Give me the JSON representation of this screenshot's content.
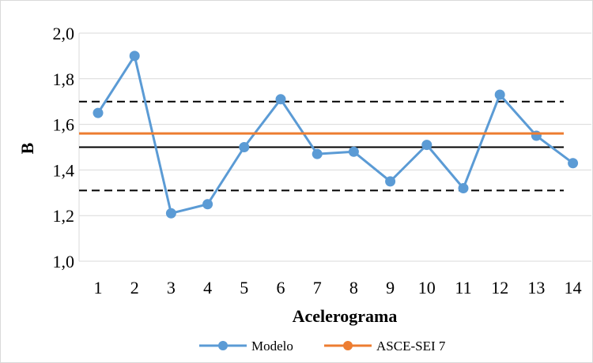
{
  "chart_data": {
    "type": "line",
    "title": "",
    "xlabel": "Acelerograma",
    "ylabel": "B",
    "categories": [
      "1",
      "2",
      "3",
      "4",
      "5",
      "6",
      "7",
      "8",
      "9",
      "10",
      "11",
      "12",
      "13",
      "14"
    ],
    "ylim": [
      1.0,
      2.0
    ],
    "yticks": [
      "1,0",
      "1,2",
      "1,4",
      "1,6",
      "1,8",
      "2,0"
    ],
    "grid": true,
    "legend_position": "bottom",
    "series": [
      {
        "name": "Modelo",
        "color": "#5b9bd5",
        "marker": "circle",
        "values": [
          1.65,
          1.9,
          1.21,
          1.25,
          1.5,
          1.71,
          1.47,
          1.48,
          1.35,
          1.51,
          1.32,
          1.73,
          1.55,
          1.43
        ]
      },
      {
        "name": "ASCE-SEI 7",
        "color": "#ed7d31",
        "marker": "circle",
        "values": [
          1.56,
          1.56,
          1.56,
          1.56,
          1.56,
          1.56,
          1.56,
          1.56,
          1.56,
          1.56,
          1.56,
          1.56,
          1.56,
          1.56
        ]
      }
    ],
    "reference_lines": [
      {
        "style": "solid",
        "color": "#000000",
        "value": 1.5
      },
      {
        "style": "dashed",
        "color": "#000000",
        "value": 1.7
      },
      {
        "style": "dashed",
        "color": "#000000",
        "value": 1.31
      }
    ]
  }
}
